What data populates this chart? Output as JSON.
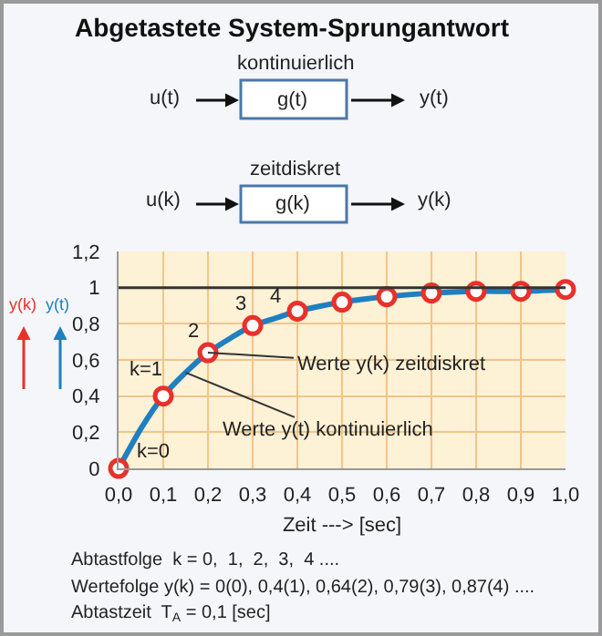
{
  "chart_data": {
    "type": "line",
    "title": "Abgetastete System-Sprungantwort",
    "xlabel": "Zeit ---> [sec]",
    "series": [
      {
        "color": "#1f7fc0",
        "marker": "none",
        "line_style": "solid",
        "x": [
          0,
          0.05,
          0.1,
          0.15,
          0.2,
          0.25,
          0.3,
          0.35,
          0.4,
          0.5,
          0.6,
          0.7,
          0.8,
          0.9,
          1.0
        ],
        "values": [
          0,
          0.22,
          0.4,
          0.53,
          0.64,
          0.72,
          0.79,
          0.83,
          0.87,
          0.92,
          0.95,
          0.97,
          0.98,
          0.98,
          0.99
        ]
      },
      {
        "type": "scatter",
        "color": "#e8312a",
        "marker": "circle",
        "x": [
          0,
          0.1,
          0.2,
          0.3,
          0.4,
          0.5,
          0.6,
          0.7,
          0.8,
          0.9,
          1.0
        ],
        "values": [
          0,
          0.4,
          0.64,
          0.79,
          0.87,
          0.92,
          0.95,
          0.97,
          0.98,
          0.98,
          0.99
        ]
      }
    ],
    "xlim": [
      0,
      1.0
    ],
    "xticks": [
      {
        "value": 0,
        "label": "0,0"
      },
      {
        "value": 0.1,
        "label": "0,1"
      },
      {
        "value": 0.2,
        "label": "0,2"
      },
      {
        "value": 0.3,
        "label": "0,3"
      },
      {
        "value": 0.4,
        "label": "0,4"
      },
      {
        "value": 0.5,
        "label": "0,5"
      },
      {
        "value": 0.6,
        "label": "0,6"
      },
      {
        "value": 0.7,
        "label": "0,7"
      },
      {
        "value": 0.8,
        "label": "0,8"
      },
      {
        "value": 0.9,
        "label": "0,9"
      },
      {
        "value": 1.0,
        "label": "1,0"
      }
    ],
    "ylim": [
      0,
      1.2
    ],
    "yticks": [
      0,
      {
        "value": 0.2,
        "label": "0,2"
      },
      {
        "value": 0.4,
        "label": "0,4"
      },
      {
        "value": 0.6,
        "label": "0,6"
      },
      {
        "value": 0.8,
        "label": "0,8"
      },
      1,
      {
        "value": 1.2,
        "label": "1,2"
      }
    ],
    "grid": true,
    "legend": false,
    "ref_lines": [
      {
        "axis": "y",
        "value": 1,
        "color": "#333333"
      }
    ],
    "annotations": [
      "kontinuierlich",
      "u(t)",
      "g(t)",
      "y(t)",
      "zeitdiskret",
      "u(k)",
      "g(k)",
      "y(k)",
      "y(k)",
      "y(t)",
      {
        "text": "k=0",
        "x": 0,
        "y": 0
      },
      {
        "text": "k=1",
        "x": 0.1,
        "y": 0.4
      },
      {
        "text": "2",
        "x": 0.2,
        "y": 0.64
      },
      {
        "text": "3",
        "x": 0.3,
        "y": 0.79
      },
      {
        "text": "4",
        "x": 0.4,
        "y": 0.87
      },
      {
        "text": "Werte y(k) zeitdiskret",
        "x": 0.2,
        "y": 0.64
      },
      {
        "text": "Werte y(t) kontinuierlich",
        "x": 0.15,
        "y": 0.53
      },
      "Abtastfolge  k = 0,  1,  2,  3,  4 ....",
      "Wertefolge y(k) = 0(0), 0,4(1), 0,64(2), 0,79(3), 0,87(4) ....",
      "Abtastzeit  T$_{A}$ = 0,1 [sec]"
    ]
  }
}
